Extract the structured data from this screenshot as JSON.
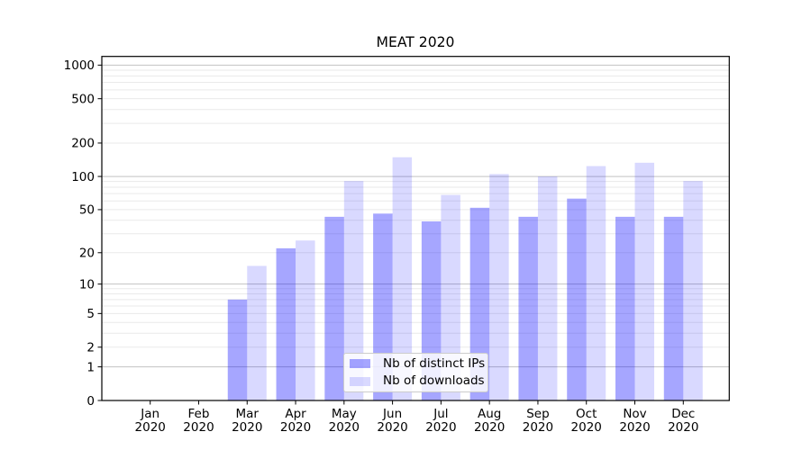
{
  "chart_data": {
    "type": "bar",
    "title": "MEAT 2020",
    "y_scale": "symlog (position = log10(value+1))",
    "grid": "horizontal only; light minor log lines, darker lines at 1,10,100,1000",
    "legend_position": "lower center",
    "months": [
      "Jan",
      "Feb",
      "Mar",
      "Apr",
      "May",
      "Jun",
      "Jul",
      "Aug",
      "Sep",
      "Oct",
      "Nov",
      "Dec"
    ],
    "year": "2020",
    "y_ticks": [
      1000,
      500,
      200,
      100,
      50,
      20,
      10,
      5,
      2,
      1,
      0
    ],
    "ylim": [
      0,
      1200
    ],
    "series": [
      {
        "name": "Nb of distinct IPs",
        "color": "rgba(0,0,255,0.35)",
        "values": [
          0,
          0,
          7,
          22,
          43,
          46,
          39,
          52,
          43,
          63,
          43,
          43
        ]
      },
      {
        "name": "Nb of downloads",
        "color": "rgba(0,0,255,0.15)",
        "values": [
          0,
          0,
          15,
          26,
          91,
          149,
          68,
          105,
          100,
          124,
          133,
          91
        ]
      }
    ],
    "colors": {
      "grid_major": "#c2c2c2",
      "grid_minor": "#eaeaea",
      "axis": "#000000",
      "text": "#000000",
      "background": "#ffffff"
    }
  }
}
